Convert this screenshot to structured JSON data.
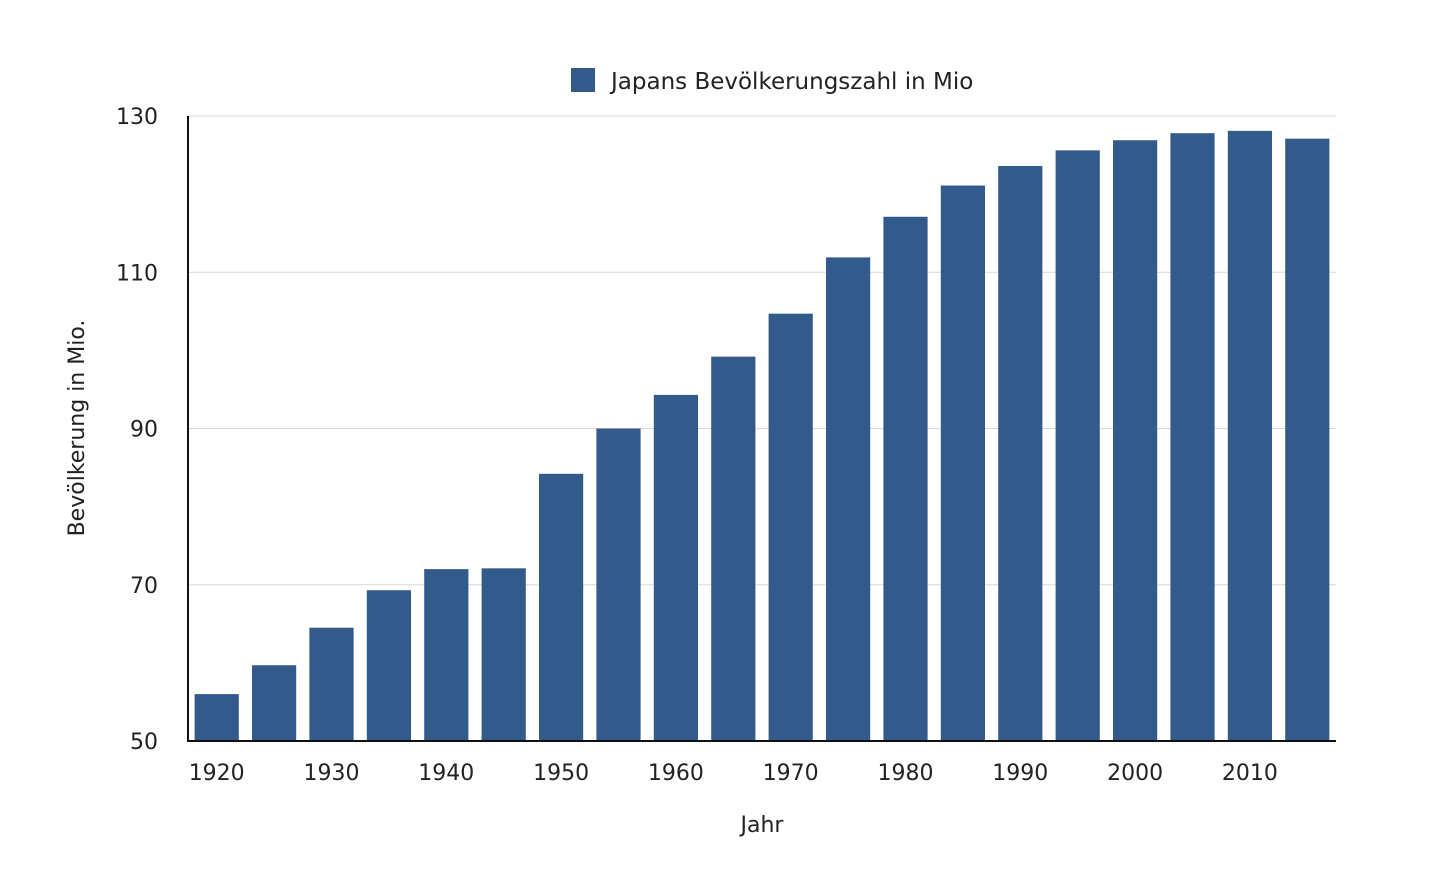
{
  "chart_data": {
    "type": "bar",
    "categories": [
      "1920",
      "1925",
      "1930",
      "1935",
      "1940",
      "1945",
      "1950",
      "1955",
      "1960",
      "1965",
      "1970",
      "1975",
      "1980",
      "1985",
      "1990",
      "1995",
      "2000",
      "2005",
      "2010",
      "2015"
    ],
    "series": [
      {
        "name": "Japans Bevölkerungszahl in Mio",
        "color": "#325a8a",
        "values": [
          56.0,
          59.7,
          64.5,
          69.3,
          72.0,
          72.1,
          84.2,
          90.0,
          94.3,
          99.2,
          104.7,
          111.9,
          117.1,
          121.1,
          123.6,
          125.6,
          126.9,
          127.8,
          128.1,
          127.1
        ]
      }
    ],
    "x_tick_labels": [
      "1920",
      "1930",
      "1940",
      "1950",
      "1960",
      "1970",
      "1980",
      "1990",
      "2000",
      "2010"
    ],
    "y_ticks": [
      50,
      70,
      90,
      110,
      130
    ],
    "ylim": [
      50,
      130
    ],
    "xlabel": "Jahr",
    "ylabel": "Bevölkerung in Mio.",
    "grid": true,
    "legend_position": "top-center",
    "colors": {
      "bar": "#325a8a",
      "grid": "#d9d9d9",
      "axis": "#111111"
    }
  }
}
